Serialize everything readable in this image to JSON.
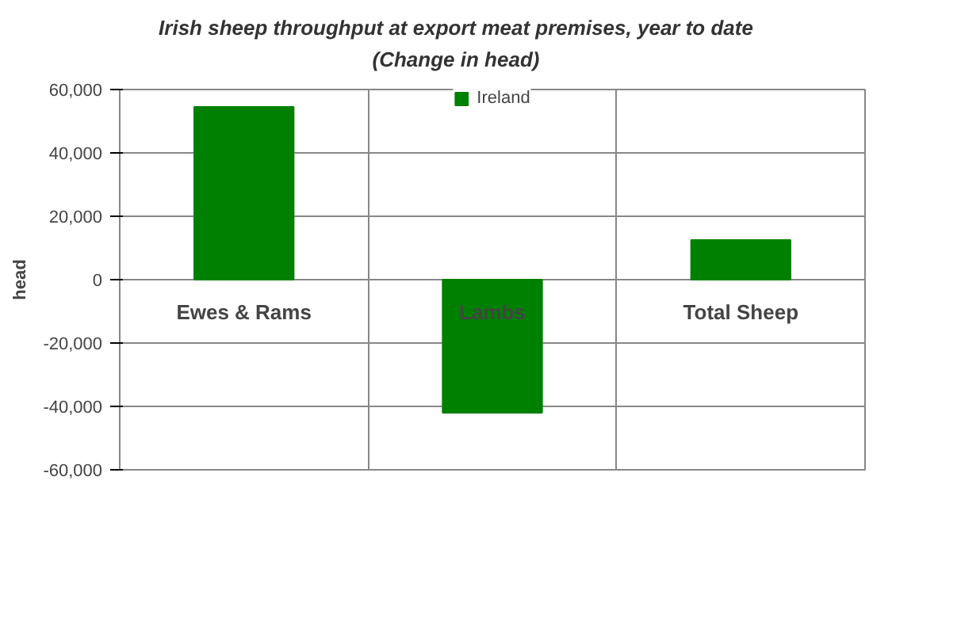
{
  "chart_data": {
    "type": "bar",
    "title": "Irish sheep throughput at export meat premises, year to date",
    "subtitle": "(Change in head)",
    "ylabel": "head",
    "categories": [
      "Ewes & Rams",
      "Lambs",
      "Total Sheep"
    ],
    "series": [
      {
        "name": "Ireland",
        "color": "#008000",
        "values": [
          54500,
          -42000,
          12500
        ]
      }
    ],
    "ylim": [
      -60000,
      60000
    ],
    "yticks": [
      {
        "value": -60000,
        "label": "-60,000"
      },
      {
        "value": -40000,
        "label": "-40,000"
      },
      {
        "value": -20000,
        "label": "-20,000"
      },
      0,
      {
        "value": 20000,
        "label": "20,000"
      },
      {
        "value": 40000,
        "label": "40,000"
      },
      {
        "value": 60000,
        "label": "60,000"
      }
    ],
    "grid": true,
    "legend": "top"
  }
}
